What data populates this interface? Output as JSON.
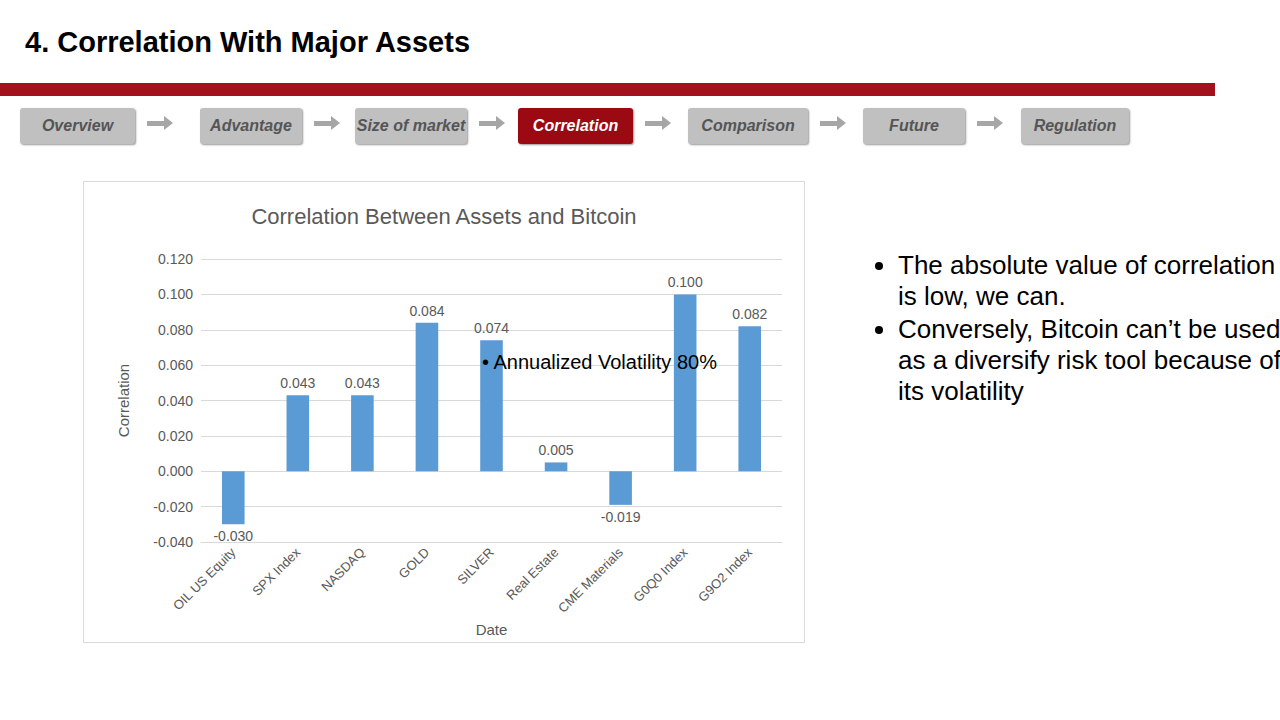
{
  "chart_data": {
    "type": "bar",
    "title": "Correlation Between Assets and Bitcoin",
    "categories": [
      "OIL US Equity",
      "SPX Index",
      "NASDAQ",
      "GOLD",
      "SILVER",
      "Real Estate",
      "CME Materials",
      "G0Q0 Index",
      "G9O2 Index"
    ],
    "values": [
      -0.03,
      0.043,
      0.043,
      0.084,
      0.074,
      0.005,
      -0.019,
      0.1,
      0.082
    ],
    "value_labels": [
      "-0.030",
      "0.043",
      "0.043",
      "0.084",
      "0.074",
      "0.005",
      "-0.019",
      "0.100",
      "0.082"
    ],
    "color": "#5b9bd5",
    "x_label": "Date",
    "y_label": "Correlation",
    "ylim": [
      -0.04,
      0.12
    ],
    "yticks": [
      {
        "value": -0.04,
        "label": "-0.040"
      },
      {
        "value": -0.02,
        "label": "-0.020"
      },
      {
        "value": 0,
        "label": "0.000"
      },
      {
        "value": 0.02,
        "label": "0.020"
      },
      {
        "value": 0.04,
        "label": "0.040"
      },
      {
        "value": 0.06,
        "label": "0.060"
      },
      {
        "value": 0.08,
        "label": "0.080"
      },
      {
        "value": 0.1,
        "label": "0.100"
      },
      {
        "value": 0.12,
        "label": "0.120"
      }
    ],
    "grid": true,
    "data_labels": true,
    "annotations": [
      "• Annualized Volatility 80%"
    ]
  },
  "slide": {
    "title": "4. Correlation With Major Assets",
    "nav": [
      {
        "label": "Overview",
        "active": false
      },
      {
        "label": "Advantage",
        "active": false
      },
      {
        "label": "Size of market",
        "active": false
      },
      {
        "label": "Correlation",
        "active": true
      },
      {
        "label": "Comparison",
        "active": false
      },
      {
        "label": "Future",
        "active": false
      },
      {
        "label": "Regulation",
        "active": false
      }
    ],
    "bullets": [
      "The absolute value of correlation is low, we can.",
      "Conversely, Bitcoin can’t be used as a diversify risk tool because of its volatility"
    ]
  }
}
